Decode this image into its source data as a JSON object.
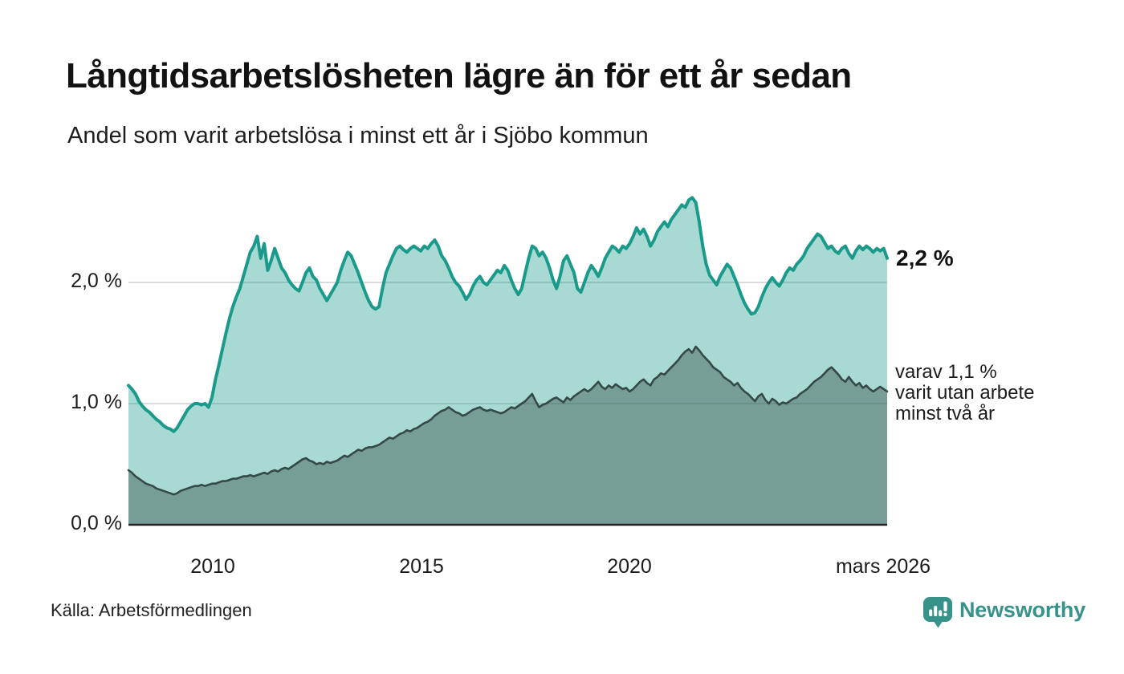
{
  "header": {
    "title": "Långtidsarbetslösheten lägre än för ett år sedan",
    "subtitle": "Andel som varit arbetslösa i minst ett år i Sjöbo kommun"
  },
  "annotations": {
    "latest_value": "2,2 %",
    "secondary_line1": "varav 1,1 %",
    "secondary_line2": "varit utan arbete",
    "secondary_line3": "minst två år"
  },
  "footer": {
    "source": "Källa: Arbetsförmedlingen",
    "brand": "Newsworthy"
  },
  "colors": {
    "accent_teal_line": "#1a9a8b",
    "light_fill": "rgba(26,154,139,0.38)",
    "dark_series_line": "#354946",
    "dark_fill": "rgba(53,73,70,0.42)",
    "gridline": "#d9dbdd",
    "baseline": "#222222",
    "brand_teal": "#37938a",
    "text": "#121212"
  },
  "chart_data": {
    "type": "area",
    "title": "Långtidsarbetslösheten lägre än för ett år sedan",
    "subtitle": "Andel som varit arbetslösa i minst ett år i Sjöbo kommun",
    "frequency": "monthly",
    "x_start": "2008-01",
    "x_end": "2026-03",
    "x_tick_labels": [
      "2010",
      "2015",
      "2020",
      "mars 2026"
    ],
    "y_tick_labels": [
      "0,0 %",
      "1,0 %",
      "2,0 %"
    ],
    "ylim": [
      0,
      2.8
    ],
    "grid": "horizontal gridlines at 1,0 % and 2,0 %, baseline at 0,0 %",
    "legend_position": "end-of-line labels at right",
    "series": [
      {
        "name": "Arbetslösa minst ett år",
        "end_label": "2,2 %",
        "end_value": 2.2,
        "line_color": "#1a9a8b",
        "fill_color": "rgba(26,154,139,0.38)",
        "values": [
          1.15,
          1.12,
          1.08,
          1.02,
          0.98,
          0.95,
          0.93,
          0.9,
          0.87,
          0.85,
          0.82,
          0.8,
          0.79,
          0.77,
          0.8,
          0.85,
          0.9,
          0.95,
          0.98,
          1.0,
          1.0,
          0.99,
          1.0,
          0.97,
          1.05,
          1.2,
          1.32,
          1.45,
          1.58,
          1.7,
          1.8,
          1.88,
          1.95,
          2.05,
          2.15,
          2.25,
          2.3,
          2.38,
          2.2,
          2.32,
          2.1,
          2.18,
          2.28,
          2.2,
          2.12,
          2.08,
          2.02,
          1.98,
          1.95,
          1.93,
          2.0,
          2.08,
          2.12,
          2.05,
          2.02,
          1.95,
          1.9,
          1.85,
          1.9,
          1.95,
          2.0,
          2.1,
          2.18,
          2.25,
          2.22,
          2.15,
          2.08,
          2.0,
          1.92,
          1.85,
          1.8,
          1.78,
          1.8,
          1.95,
          2.08,
          2.15,
          2.22,
          2.28,
          2.3,
          2.27,
          2.25,
          2.28,
          2.3,
          2.28,
          2.26,
          2.3,
          2.28,
          2.32,
          2.35,
          2.3,
          2.22,
          2.18,
          2.12,
          2.05,
          2.0,
          1.97,
          1.92,
          1.86,
          1.9,
          1.97,
          2.02,
          2.05,
          2.0,
          1.98,
          2.02,
          2.06,
          2.1,
          2.08,
          2.14,
          2.1,
          2.02,
          1.95,
          1.9,
          1.95,
          2.08,
          2.2,
          2.3,
          2.28,
          2.22,
          2.25,
          2.2,
          2.12,
          2.02,
          1.95,
          2.05,
          2.18,
          2.22,
          2.15,
          2.08,
          1.95,
          1.92,
          2.0,
          2.08,
          2.14,
          2.1,
          2.05,
          2.12,
          2.2,
          2.25,
          2.3,
          2.28,
          2.25,
          2.3,
          2.28,
          2.32,
          2.38,
          2.45,
          2.4,
          2.44,
          2.38,
          2.3,
          2.35,
          2.42,
          2.46,
          2.5,
          2.46,
          2.52,
          2.56,
          2.6,
          2.64,
          2.62,
          2.68,
          2.7,
          2.66,
          2.5,
          2.3,
          2.15,
          2.06,
          2.02,
          1.98,
          2.05,
          2.1,
          2.15,
          2.12,
          2.05,
          1.98,
          1.9,
          1.83,
          1.78,
          1.74,
          1.75,
          1.8,
          1.88,
          1.95,
          2.0,
          2.04,
          2.0,
          1.97,
          2.02,
          2.08,
          2.12,
          2.1,
          2.15,
          2.18,
          2.22,
          2.28,
          2.32,
          2.36,
          2.4,
          2.38,
          2.33,
          2.28,
          2.3,
          2.26,
          2.24,
          2.28,
          2.3,
          2.24,
          2.2,
          2.26,
          2.3,
          2.27,
          2.3,
          2.28,
          2.25,
          2.28,
          2.26,
          2.28,
          2.2
        ]
      },
      {
        "name": "Arbetslösa minst två år",
        "end_label": "varav 1,1 % varit utan arbete minst två år",
        "end_value": 1.1,
        "line_color": "#354946",
        "fill_color": "rgba(53,73,70,0.42)",
        "values": [
          0.45,
          0.43,
          0.4,
          0.38,
          0.36,
          0.34,
          0.33,
          0.32,
          0.3,
          0.29,
          0.28,
          0.27,
          0.26,
          0.25,
          0.26,
          0.28,
          0.29,
          0.3,
          0.31,
          0.32,
          0.32,
          0.33,
          0.32,
          0.33,
          0.34,
          0.34,
          0.35,
          0.36,
          0.36,
          0.37,
          0.38,
          0.38,
          0.39,
          0.4,
          0.4,
          0.41,
          0.4,
          0.41,
          0.42,
          0.43,
          0.42,
          0.44,
          0.45,
          0.44,
          0.46,
          0.47,
          0.46,
          0.48,
          0.5,
          0.52,
          0.54,
          0.55,
          0.53,
          0.52,
          0.5,
          0.51,
          0.5,
          0.52,
          0.51,
          0.52,
          0.53,
          0.55,
          0.57,
          0.56,
          0.58,
          0.6,
          0.62,
          0.61,
          0.63,
          0.64,
          0.64,
          0.65,
          0.66,
          0.68,
          0.7,
          0.72,
          0.71,
          0.73,
          0.75,
          0.76,
          0.78,
          0.77,
          0.79,
          0.8,
          0.82,
          0.84,
          0.85,
          0.87,
          0.9,
          0.92,
          0.94,
          0.95,
          0.97,
          0.95,
          0.93,
          0.92,
          0.9,
          0.91,
          0.93,
          0.95,
          0.96,
          0.97,
          0.95,
          0.94,
          0.95,
          0.94,
          0.93,
          0.92,
          0.93,
          0.95,
          0.97,
          0.96,
          0.98,
          1.0,
          1.02,
          1.05,
          1.08,
          1.02,
          0.97,
          0.99,
          1.0,
          1.02,
          1.04,
          1.05,
          1.03,
          1.01,
          1.05,
          1.03,
          1.06,
          1.08,
          1.1,
          1.12,
          1.1,
          1.12,
          1.15,
          1.18,
          1.14,
          1.12,
          1.15,
          1.13,
          1.16,
          1.14,
          1.12,
          1.13,
          1.1,
          1.12,
          1.15,
          1.18,
          1.2,
          1.17,
          1.15,
          1.2,
          1.22,
          1.25,
          1.24,
          1.27,
          1.3,
          1.33,
          1.36,
          1.4,
          1.43,
          1.45,
          1.42,
          1.47,
          1.44,
          1.4,
          1.37,
          1.34,
          1.3,
          1.28,
          1.26,
          1.22,
          1.2,
          1.18,
          1.15,
          1.17,
          1.13,
          1.1,
          1.08,
          1.05,
          1.02,
          1.06,
          1.08,
          1.03,
          1.0,
          1.04,
          1.02,
          0.99,
          1.01,
          1.0,
          1.02,
          1.04,
          1.05,
          1.08,
          1.1,
          1.12,
          1.15,
          1.18,
          1.2,
          1.22,
          1.25,
          1.28,
          1.3,
          1.27,
          1.24,
          1.2,
          1.18,
          1.22,
          1.18,
          1.15,
          1.17,
          1.13,
          1.15,
          1.12,
          1.1,
          1.12,
          1.14,
          1.12,
          1.1
        ]
      }
    ]
  }
}
